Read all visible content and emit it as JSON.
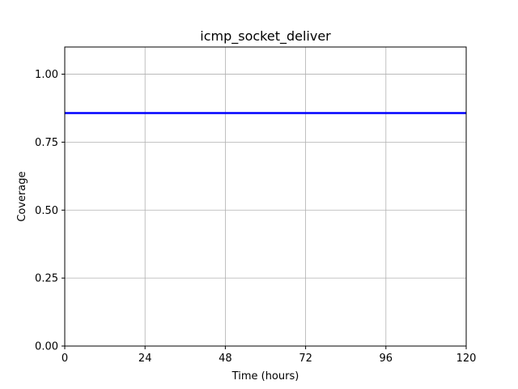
{
  "chart_data": {
    "type": "line",
    "title": "icmp_socket_deliver",
    "xlabel": "Time (hours)",
    "ylabel": "Coverage",
    "xlim": [
      0,
      120
    ],
    "ylim": [
      0,
      1.1
    ],
    "xticks": [
      0,
      24,
      48,
      72,
      96,
      120
    ],
    "xtick_labels": [
      "0",
      "24",
      "48",
      "72",
      "96",
      "120"
    ],
    "yticks": [
      0.0,
      0.25,
      0.5,
      0.75,
      1.0
    ],
    "ytick_labels": [
      "0.00",
      "0.25",
      "0.50",
      "0.75",
      "1.00"
    ],
    "grid": true,
    "series": [
      {
        "color": "#0000ff",
        "x": [
          0,
          120
        ],
        "y": [
          0.857,
          0.857
        ]
      }
    ]
  }
}
